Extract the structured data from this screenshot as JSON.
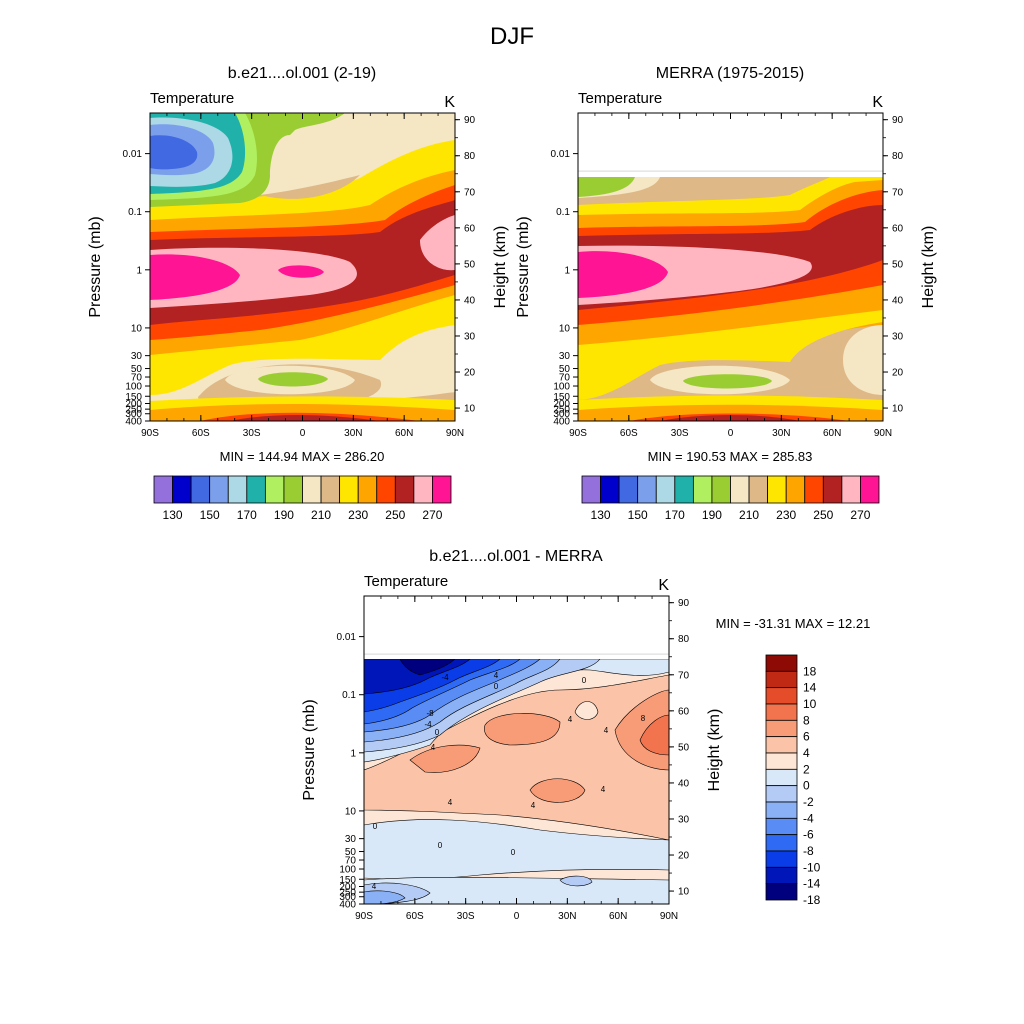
{
  "figure": {
    "title": "DJF",
    "colors": {
      "background": "#ffffff",
      "axis": "#000000",
      "contour_line": "#000000"
    }
  },
  "chart_data": [
    {
      "type": "heatmap",
      "id": "model",
      "title": "b.e21....ol.001 (2-19)",
      "subtitle_left": "Temperature",
      "subtitle_right": "K",
      "xlabel": "",
      "ylabel": "Pressure (mb)",
      "ylabel_right": "Height (km)",
      "x_ticks": [
        "90S",
        "60S",
        "30S",
        "0",
        "30N",
        "60N",
        "90N"
      ],
      "y_ticks": [
        "0.01",
        "0.1",
        "1",
        "10",
        "30",
        "50",
        "70",
        "100",
        "150",
        "200",
        "250",
        "300",
        "400"
      ],
      "y_ticks_right": [
        "90",
        "80",
        "70",
        "60",
        "50",
        "40",
        "30",
        "20",
        "10"
      ],
      "xlim": [
        -90,
        90
      ],
      "ylim_mb": [
        400,
        0.002
      ],
      "log_y": true,
      "stats": "MIN = 144.94  MAX = 286.20",
      "min": 144.94,
      "max": 286.2,
      "levels": [
        130,
        140,
        150,
        160,
        170,
        180,
        190,
        200,
        210,
        220,
        230,
        240,
        250,
        260,
        270
      ],
      "legend_labels": [
        "130",
        "150",
        "170",
        "190",
        "210",
        "230",
        "250",
        "270"
      ],
      "legend_placement": "bottom",
      "palette": [
        "#9370DB",
        "#0000CD",
        "#4169E1",
        "#7B9FEB",
        "#ADD8E6",
        "#20B2AA",
        "#B0F060",
        "#9ACD32",
        "#F5E6C4",
        "#DEB887",
        "#FFE600",
        "#FFA500",
        "#FF4500",
        "#B22222",
        "#FFB6C1",
        "#FF1493"
      ]
    },
    {
      "type": "heatmap",
      "id": "obs",
      "title": "MERRA (1975-2015)",
      "subtitle_left": "Temperature",
      "subtitle_right": "K",
      "xlabel": "",
      "ylabel": "Pressure (mb)",
      "ylabel_right": "Height (km)",
      "x_ticks": [
        "90S",
        "60S",
        "30S",
        "0",
        "30N",
        "60N",
        "90N"
      ],
      "y_ticks": [
        "0.01",
        "0.1",
        "1",
        "10",
        "30",
        "50",
        "70",
        "100",
        "150",
        "200",
        "250",
        "300",
        "400"
      ],
      "y_ticks_right": [
        "90",
        "80",
        "70",
        "60",
        "50",
        "40",
        "30",
        "20",
        "10"
      ],
      "xlim": [
        -90,
        90
      ],
      "ylim_mb": [
        400,
        0.002
      ],
      "log_y": true,
      "data_top_mb": 0.02,
      "stats": "MIN = 190.53  MAX = 285.83",
      "min": 190.53,
      "max": 285.83,
      "levels": [
        130,
        140,
        150,
        160,
        170,
        180,
        190,
        200,
        210,
        220,
        230,
        240,
        250,
        260,
        270
      ],
      "legend_labels": [
        "130",
        "150",
        "170",
        "190",
        "210",
        "230",
        "250",
        "270"
      ],
      "legend_placement": "bottom",
      "palette": [
        "#9370DB",
        "#0000CD",
        "#4169E1",
        "#7B9FEB",
        "#ADD8E6",
        "#20B2AA",
        "#B0F060",
        "#9ACD32",
        "#F5E6C4",
        "#DEB887",
        "#FFE600",
        "#FFA500",
        "#FF4500",
        "#B22222",
        "#FFB6C1",
        "#FF1493"
      ]
    },
    {
      "type": "heatmap",
      "id": "diff",
      "title": "b.e21....ol.001 - MERRA",
      "subtitle_left": "Temperature",
      "subtitle_right": "K",
      "xlabel": "",
      "ylabel": "Pressure (mb)",
      "ylabel_right": "Height (km)",
      "x_ticks": [
        "90S",
        "60S",
        "30S",
        "0",
        "30N",
        "60N",
        "90N"
      ],
      "y_ticks": [
        "0.01",
        "0.1",
        "1",
        "10",
        "30",
        "50",
        "70",
        "100",
        "150",
        "200",
        "250",
        "300",
        "400"
      ],
      "y_ticks_right": [
        "90",
        "80",
        "70",
        "60",
        "50",
        "40",
        "30",
        "20",
        "10"
      ],
      "xlim": [
        -90,
        90
      ],
      "ylim_mb": [
        400,
        0.002
      ],
      "log_y": true,
      "data_top_mb": 0.02,
      "stats": "MIN = -31.31  MAX =  12.21",
      "min": -31.31,
      "max": 12.21,
      "levels": [
        -18,
        -14,
        -10,
        -8,
        -6,
        -4,
        -2,
        0,
        2,
        4,
        6,
        8,
        10,
        14,
        18
      ],
      "legend_labels": [
        "18",
        "14",
        "10",
        "8",
        "6",
        "4",
        "2",
        "0",
        "-2",
        "-4",
        "-6",
        "-8",
        "-10",
        "-14",
        "-18"
      ],
      "legend_placement": "right",
      "contour_labels": [
        "-8",
        "-4",
        "-4",
        "0",
        "0",
        "4",
        "4",
        "4",
        "4",
        "4",
        "0",
        "0",
        "0",
        "0",
        "4",
        "4",
        "8",
        "4"
      ],
      "palette": [
        "#00007F",
        "#0016B8",
        "#0A3CE8",
        "#2F6AF5",
        "#5A8CF5",
        "#8AB0F5",
        "#B4CCF5",
        "#D9E8F8",
        "#FDE6D6",
        "#FBC4A8",
        "#F89C78",
        "#F2744E",
        "#E54C2A",
        "#C02A14",
        "#8E0A04"
      ]
    }
  ]
}
